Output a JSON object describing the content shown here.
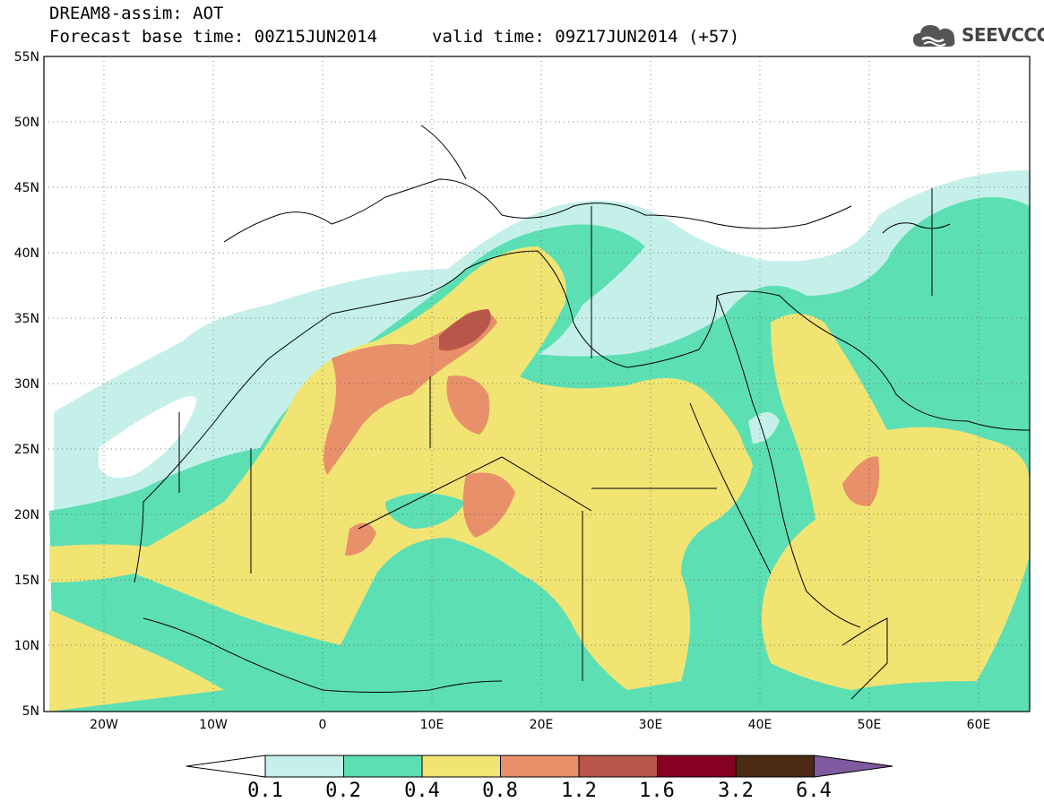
{
  "header": {
    "title": "DREAM8-assim: AOT",
    "base_time": "Forecast base time: 00Z15JUN2014",
    "valid_time": "valid time: 09Z17JUN2014 (+57)"
  },
  "logo": {
    "text": "SEEVCCC",
    "icon": "cloud-icon",
    "color": "#555555"
  },
  "axes": {
    "y_ticks": [
      "55N",
      "50N",
      "45N",
      "40N",
      "35N",
      "30N",
      "25N",
      "20N",
      "15N",
      "10N",
      "5N"
    ],
    "x_ticks": [
      "20W",
      "10W",
      "0",
      "10E",
      "20E",
      "30E",
      "40E",
      "50E",
      "60E"
    ]
  },
  "colorbar": {
    "labels": [
      "0.1",
      "0.2",
      "0.4",
      "0.8",
      "1.2",
      "1.6",
      "3.2",
      "6.4"
    ],
    "colors": [
      "#ffffff",
      "#c5f0ea",
      "#5ddfb4",
      "#f2e473",
      "#e8906a",
      "#b9564a",
      "#860022",
      "#4a2a12",
      "#7f5aa0"
    ]
  },
  "map": {
    "projection": "lat-lon",
    "lon_range": [
      -25,
      65
    ],
    "lat_range": [
      5,
      55
    ],
    "contours": "dust aerosol optical thickness"
  }
}
